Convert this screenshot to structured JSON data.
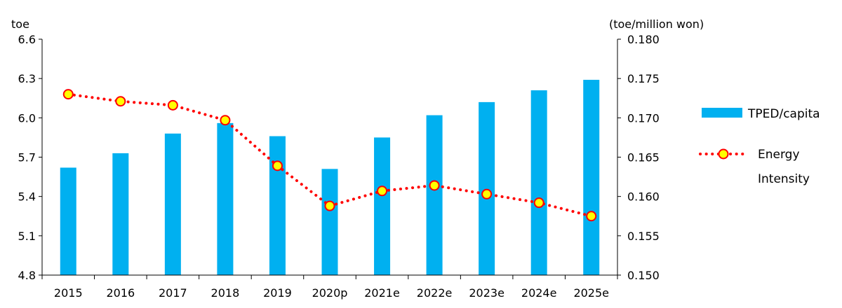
{
  "chart_data": {
    "type": "bar",
    "categories": [
      "2015",
      "2016",
      "2017",
      "2018",
      "2019",
      "2020p",
      "2021e",
      "2022e",
      "2023e",
      "2024e",
      "2025e"
    ],
    "y_left": {
      "unit_label": "toe",
      "range": [
        4.8,
        6.6
      ],
      "ticks": [
        "6.6",
        "6.3",
        "6.0",
        "5.7",
        "5.4",
        "5.1",
        "4.8"
      ]
    },
    "y_right": {
      "unit_label": "(toe/million won)",
      "range": [
        0.15,
        0.18
      ],
      "ticks": [
        "0.180",
        "0.175",
        "0.170",
        "0.165",
        "0.160",
        "0.155",
        "0.150"
      ]
    },
    "series": [
      {
        "name": "TPED/capita",
        "type": "bar",
        "axis": "left",
        "color": "#00B0F0",
        "values": [
          5.62,
          5.73,
          5.88,
          5.96,
          5.86,
          5.61,
          5.85,
          6.02,
          6.12,
          6.21,
          6.29
        ]
      },
      {
        "name": "Energy Intensity",
        "type": "line",
        "axis": "right",
        "line_style": "dotted",
        "color": "#FF0000",
        "marker_fill": "#FFFF00",
        "values": [
          0.173,
          0.1721,
          0.1716,
          0.1697,
          0.1639,
          0.1588,
          0.1607,
          0.1614,
          0.1603,
          0.1592,
          0.1575
        ]
      }
    ],
    "legend": {
      "placement": "right",
      "items": [
        {
          "label": "TPED/capita"
        },
        {
          "label_line1": "Energy",
          "label_line2": "Intensity"
        }
      ]
    },
    "grid": false
  }
}
